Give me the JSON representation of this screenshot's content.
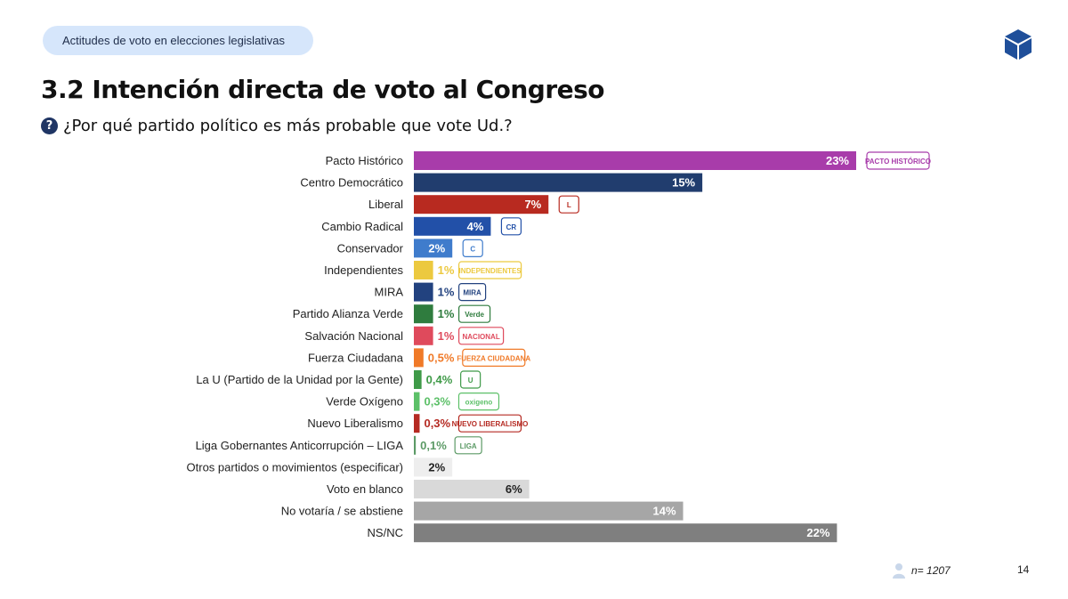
{
  "header": {
    "section_pill": "Actitudes de voto en elecciones legislativas",
    "title": "3.2 Intención directa de voto al Congreso",
    "question": "¿Por qué partido político es más probable que vote Ud.?",
    "question_icon": "question-circle-icon",
    "brand_icon": "cube-logo-icon"
  },
  "footer": {
    "sample": "n= 1207",
    "page_number": "14",
    "sample_icon": "person-icon"
  },
  "chart_data": {
    "type": "bar",
    "orientation": "horizontal",
    "title": "",
    "xlabel": "",
    "ylabel": "",
    "xlim": [
      0,
      23
    ],
    "grid": false,
    "legend": "none",
    "categories": [
      "Pacto Histórico",
      "Centro Democrático",
      "Liberal",
      "Cambio Radical",
      "Conservador",
      "Independientes",
      "MIRA",
      "Partido Alianza Verde",
      "Salvación Nacional",
      "Fuerza Ciudadana",
      "La U (Partido de la Unidad por la Gente)",
      "Verde Oxígeno",
      "Nuevo Liberalismo",
      "Liga Gobernantes Anticorrupción – LIGA",
      "Otros partidos o movimientos (especificar)",
      "Voto en blanco",
      "No votaría / se abstiene",
      "NS/NC"
    ],
    "values": [
      23,
      15,
      7,
      4,
      2,
      1,
      1,
      1,
      1,
      0.5,
      0.4,
      0.3,
      0.3,
      0.1,
      2,
      6,
      14,
      22
    ],
    "value_labels": [
      "23%",
      "15%",
      "7%",
      "4%",
      "2%",
      "1%",
      "1%",
      "1%",
      "1%",
      "0,5%",
      "0,4%",
      "0,3%",
      "0,3%",
      "0,1%",
      "2%",
      "6%",
      "14%",
      "22%"
    ],
    "colors": [
      "#a83caa",
      "#213d6e",
      "#b82a20",
      "#2250a8",
      "#3f7ccc",
      "#ecc93f",
      "#22427f",
      "#2f7c3e",
      "#df4a5c",
      "#f07a28",
      "#3f9a48",
      "#5cc068",
      "#b52a22",
      "#5c9a66",
      "#eeeeee",
      "#d9d9d9",
      "#a6a6a6",
      "#7f7f7f"
    ],
    "party_logos": [
      "PACTO HISTÓRICO",
      "",
      "L",
      "CR",
      "C",
      "INDEPENDIENTES",
      "MIRA",
      "Verde",
      "NACIONAL",
      "FUERZA CIUDADANA",
      "U",
      "oxigeno",
      "NUEVO LIBERALISMO",
      "LIGA"
    ]
  }
}
